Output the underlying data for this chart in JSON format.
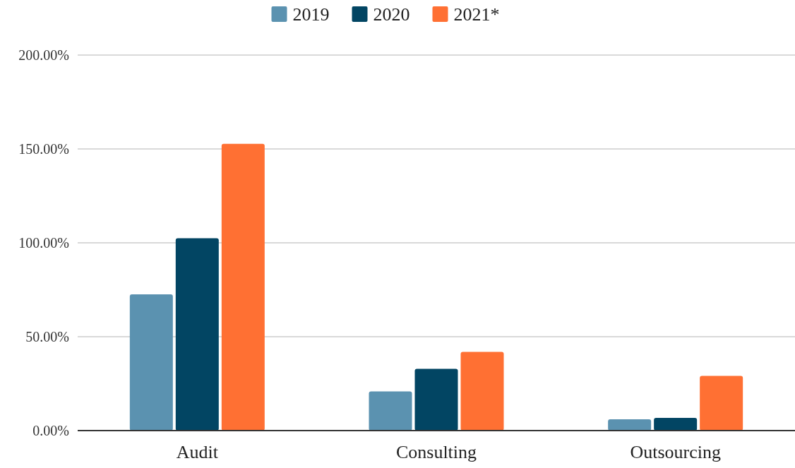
{
  "chart_data": {
    "type": "bar",
    "categories": [
      "Audit",
      "Consulting",
      "Outsourcing"
    ],
    "series": [
      {
        "name": "2019",
        "color": "#5b92b0",
        "values": [
          72.6,
          20.9,
          6.0
        ]
      },
      {
        "name": "2020",
        "color": "#024563",
        "values": [
          102.4,
          32.9,
          6.8
        ]
      },
      {
        "name": "2021*",
        "color": "#ff7033",
        "values": [
          152.7,
          41.9,
          29.1
        ]
      }
    ],
    "ylim": [
      0,
      200
    ],
    "yticks": [
      {
        "value": 0,
        "label": "0.00%"
      },
      {
        "value": 50,
        "label": "50.00%"
      },
      {
        "value": 100,
        "label": "100.00%"
      },
      {
        "value": 150,
        "label": "150.00%"
      },
      {
        "value": 200,
        "label": "200.00%"
      }
    ],
    "grid": "y",
    "legend": "top"
  }
}
